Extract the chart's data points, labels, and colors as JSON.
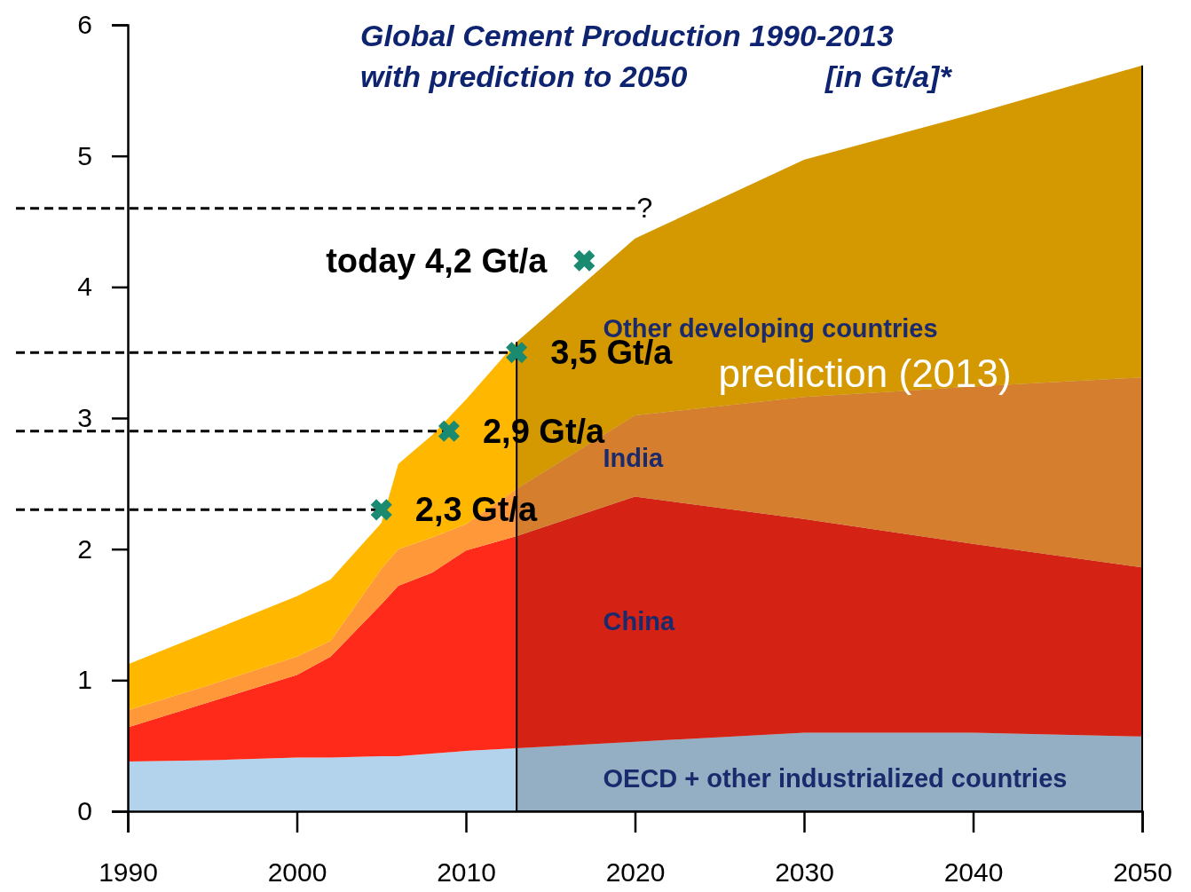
{
  "chart_data": {
    "type": "area",
    "stacked": true,
    "title": "Global Cement Production 1990-2013",
    "subtitle": "with prediction to 2050",
    "x": [
      1990,
      1995,
      2000,
      2002,
      2005,
      2006,
      2008,
      2010,
      2013,
      2020,
      2030,
      2040,
      2050
    ],
    "series": [
      {
        "name": "OECD + other industrialized countries",
        "color": "#b3d3ec",
        "values": [
          0.38,
          0.39,
          0.41,
          0.41,
          0.42,
          0.42,
          0.44,
          0.46,
          0.48,
          0.53,
          0.6,
          0.6,
          0.57
        ]
      },
      {
        "name": "China",
        "color": "#ff2a1a",
        "values": [
          0.26,
          0.45,
          0.63,
          0.77,
          1.16,
          1.3,
          1.38,
          1.53,
          1.62,
          1.87,
          1.63,
          1.44,
          1.29
        ]
      },
      {
        "name": "India",
        "color": "#ff9838",
        "values": [
          0.13,
          0.13,
          0.14,
          0.12,
          0.27,
          0.28,
          0.27,
          0.2,
          0.36,
          0.62,
          0.93,
          1.2,
          1.45
        ]
      },
      {
        "name": "Other developing countries",
        "color": "#ffb700",
        "values": [
          0.35,
          0.41,
          0.46,
          0.47,
          0.35,
          0.65,
          0.78,
          0.95,
          1.12,
          1.35,
          1.81,
          2.08,
          2.38
        ]
      },
      {
        "type": "scatter",
        "color": "#1a8a70",
        "marker": "cross",
        "x": [
          2005,
          2009,
          2013,
          2017
        ],
        "values": [
          2.3,
          2.9,
          3.5,
          4.2
        ]
      }
    ],
    "xlim": [
      1990,
      2050
    ],
    "xticks": [
      1990,
      2000,
      2010,
      2020,
      2030,
      2040,
      2050
    ],
    "ylim": [
      0,
      6
    ],
    "yticks": [
      0,
      1,
      2,
      3,
      4,
      5,
      6
    ],
    "grid": false,
    "legend": false,
    "ref_lines": [
      {
        "axis": "y",
        "value": 4.6,
        "line_style": "dashed",
        "color": "#000000"
      },
      {
        "axis": "y",
        "value": 3.5,
        "line_style": "dashed",
        "color": "#000000"
      },
      {
        "axis": "y",
        "value": 2.9,
        "line_style": "dashed",
        "color": "#000000"
      },
      {
        "axis": "y",
        "value": 2.3,
        "line_style": "dashed",
        "color": "#000000"
      }
    ],
    "bands": [
      {
        "axis": "x",
        "from": 2013,
        "to": 2050,
        "label": "prediction (2013)",
        "color": "#000000"
      }
    ],
    "annotations": [
      "[in Gt/a]*",
      {
        "text": "?",
        "x": 2020,
        "y": 4.6
      },
      {
        "text": "today 4,2 Gt/a",
        "x": 2017,
        "y": 4.2
      },
      {
        "text": "3,5 Gt/a",
        "x": 2013,
        "y": 3.5
      },
      {
        "text": "2,9 Gt/a",
        "x": 2009,
        "y": 2.9
      },
      {
        "text": "2,3 Gt/a",
        "x": 2005,
        "y": 2.3
      }
    ]
  }
}
